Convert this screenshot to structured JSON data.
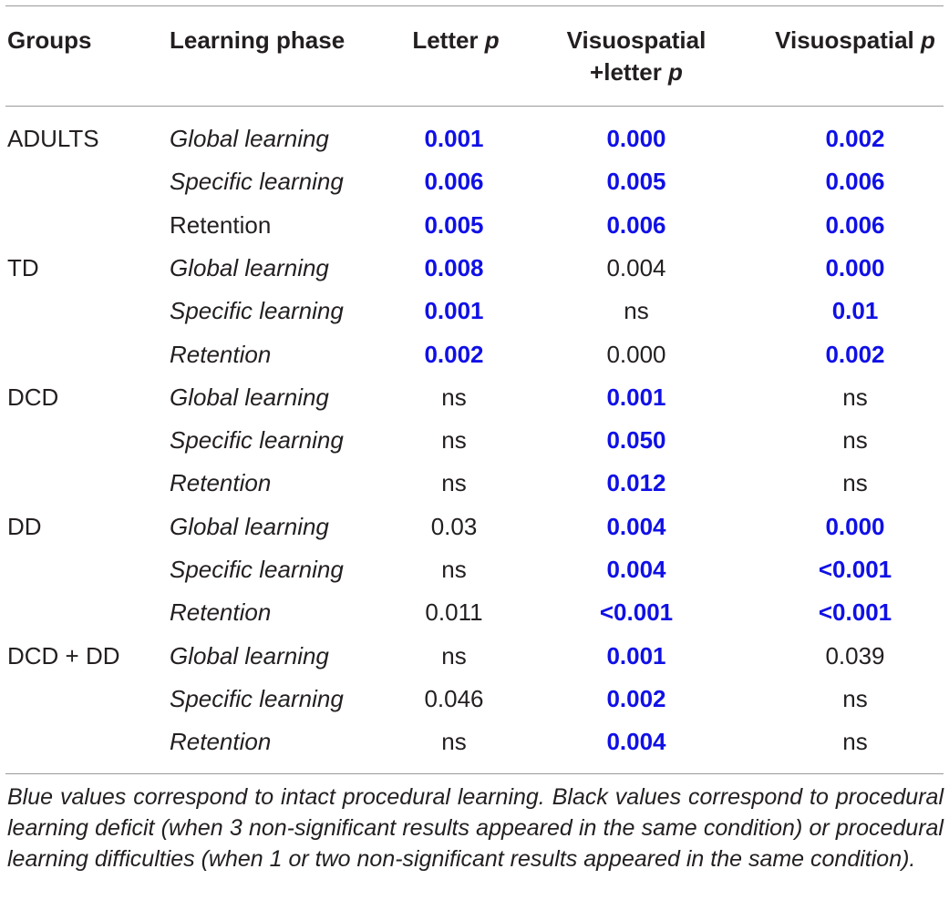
{
  "header": {
    "groups": "Groups",
    "learning_phase": "Learning phase",
    "letter_p_main": "Letter",
    "letter_p_italic": "p",
    "visuospatial_letter_line1": "Visuospatial",
    "visuospatial_letter_line2_main": "+letter",
    "visuospatial_letter_line2_italic": "p",
    "visuospatial_p_main": "Visuospatial",
    "visuospatial_p_italic": "p"
  },
  "colors": {
    "significant": "#1010e6",
    "text": "#231f20",
    "rule": "#9a9a9a"
  },
  "rows": [
    {
      "group": "ADULTS",
      "phase": "Global learning",
      "phase_italic": true,
      "letter": "0.001",
      "letter_sig": true,
      "vl": "0.000",
      "vl_sig": true,
      "vs": "0.002",
      "vs_sig": true
    },
    {
      "group": "",
      "phase": "Specific learning",
      "phase_italic": true,
      "letter": "0.006",
      "letter_sig": true,
      "vl": "0.005",
      "vl_sig": true,
      "vs": "0.006",
      "vs_sig": true
    },
    {
      "group": "",
      "phase": "Retention",
      "phase_italic": false,
      "letter": "0.005",
      "letter_sig": true,
      "vl": "0.006",
      "vl_sig": true,
      "vs": "0.006",
      "vs_sig": true
    },
    {
      "group": "TD",
      "phase": "Global learning",
      "phase_italic": true,
      "letter": "0.008",
      "letter_sig": true,
      "vl": "0.004",
      "vl_sig": false,
      "vs": "0.000",
      "vs_sig": true
    },
    {
      "group": "",
      "phase": "Specific learning",
      "phase_italic": true,
      "letter": "0.001",
      "letter_sig": true,
      "vl": "ns",
      "vl_sig": false,
      "vs": "0.01",
      "vs_sig": true
    },
    {
      "group": "",
      "phase": "Retention",
      "phase_italic": true,
      "letter": "0.002",
      "letter_sig": true,
      "vl": "0.000",
      "vl_sig": false,
      "vs": "0.002",
      "vs_sig": true
    },
    {
      "group": "DCD",
      "phase": "Global learning",
      "phase_italic": true,
      "letter": "ns",
      "letter_sig": false,
      "vl": "0.001",
      "vl_sig": true,
      "vs": "ns",
      "vs_sig": false
    },
    {
      "group": "",
      "phase": "Specific learning",
      "phase_italic": true,
      "letter": "ns",
      "letter_sig": false,
      "vl": "0.050",
      "vl_sig": true,
      "vs": "ns",
      "vs_sig": false
    },
    {
      "group": "",
      "phase": "Retention",
      "phase_italic": true,
      "letter": "ns",
      "letter_sig": false,
      "vl": "0.012",
      "vl_sig": true,
      "vs": "ns",
      "vs_sig": false
    },
    {
      "group": "DD",
      "phase": "Global learning",
      "phase_italic": true,
      "letter": "0.03",
      "letter_sig": false,
      "vl": "0.004",
      "vl_sig": true,
      "vs": "0.000",
      "vs_sig": true
    },
    {
      "group": "",
      "phase": "Specific learning",
      "phase_italic": true,
      "letter": "ns",
      "letter_sig": false,
      "vl": "0.004",
      "vl_sig": true,
      "vs": "<0.001",
      "vs_sig": true
    },
    {
      "group": "",
      "phase": "Retention",
      "phase_italic": true,
      "letter": "0.011",
      "letter_sig": false,
      "vl": "<0.001",
      "vl_sig": true,
      "vs": "<0.001",
      "vs_sig": true
    },
    {
      "group": "DCD + DD",
      "phase": "Global learning",
      "phase_italic": true,
      "letter": "ns",
      "letter_sig": false,
      "vl": "0.001",
      "vl_sig": true,
      "vs": "0.039",
      "vs_sig": false
    },
    {
      "group": "",
      "phase": "Specific learning",
      "phase_italic": true,
      "letter": "0.046",
      "letter_sig": false,
      "vl": "0.002",
      "vl_sig": true,
      "vs": "ns",
      "vs_sig": false
    },
    {
      "group": "",
      "phase": "Retention",
      "phase_italic": true,
      "letter": "ns",
      "letter_sig": false,
      "vl": "0.004",
      "vl_sig": true,
      "vs": "ns",
      "vs_sig": false
    }
  ],
  "footnote": "Blue values correspond to intact procedural learning. Black values correspond to procedural learning deficit (when 3 non-significant results appeared in the same condition) or procedural learning difficulties (when 1 or two non-significant results appeared in the same condition)."
}
